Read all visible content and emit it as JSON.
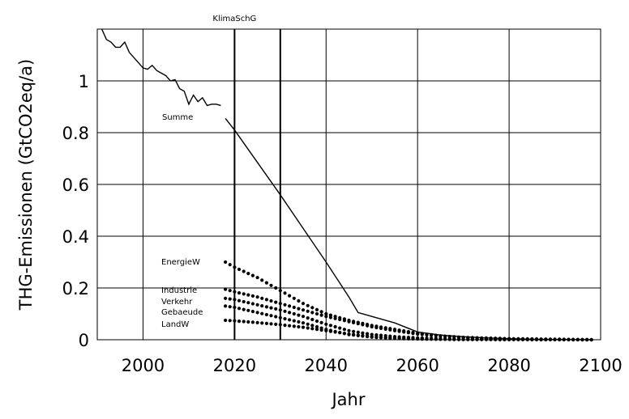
{
  "chart_data": {
    "type": "line",
    "title": "",
    "xlabel": "Jahr",
    "ylabel": "THG-Emissionen (GtCO2eq/a)",
    "xlim": [
      1990,
      2100
    ],
    "ylim": [
      0,
      1.2
    ],
    "x_ticks": [
      "2000",
      "2020",
      "2040",
      "2060",
      "2080",
      "2100"
    ],
    "y_ticks": [
      "0",
      "0.2",
      "0.4",
      "0.6",
      "0.8",
      "1"
    ],
    "grid": true,
    "vertical_markers": [
      {
        "x": 2020,
        "label": "KlimaSchG"
      },
      {
        "x": 2030,
        "label": ""
      }
    ],
    "series": [
      {
        "name": "Summe",
        "style": "line",
        "x": [
          1991,
          1992,
          1993,
          1994,
          1995,
          1996,
          1997,
          1998,
          1999,
          2000,
          2001,
          2002,
          2003,
          2004,
          2005,
          2006,
          2007,
          2008,
          2009,
          2010,
          2011,
          2012,
          2013,
          2014,
          2015,
          2016,
          2017
        ],
        "y": [
          1.2,
          1.16,
          1.15,
          1.13,
          1.13,
          1.15,
          1.11,
          1.09,
          1.07,
          1.05,
          1.045,
          1.06,
          1.04,
          1.03,
          1.02,
          1.0,
          1.005,
          0.97,
          0.96,
          0.91,
          0.945,
          0.92,
          0.935,
          0.905,
          0.91,
          0.91,
          0.905
        ]
      },
      {
        "name": "",
        "style": "line",
        "x": [
          2018,
          2020,
          2025,
          2030,
          2035,
          2040,
          2045,
          2047,
          2050,
          2055,
          2060,
          2065,
          2070,
          2075,
          2080,
          2085,
          2090,
          2095,
          2098
        ],
        "y": [
          0.855,
          0.81,
          0.685,
          0.56,
          0.43,
          0.3,
          0.165,
          0.105,
          0.09,
          0.065,
          0.03,
          0.018,
          0.012,
          0.007,
          0.004,
          0.002,
          0.001,
          0.0005,
          0
        ]
      },
      {
        "name": "EnergieW",
        "style": "dots",
        "x_start": 2018,
        "x_end": 2098,
        "x_step": 1,
        "y_points": [
          [
            2018,
            0.3
          ],
          [
            2020,
            0.28
          ],
          [
            2025,
            0.24
          ],
          [
            2030,
            0.19
          ],
          [
            2035,
            0.14
          ],
          [
            2040,
            0.1
          ],
          [
            2045,
            0.075
          ],
          [
            2050,
            0.055
          ],
          [
            2055,
            0.04
          ],
          [
            2060,
            0.025
          ],
          [
            2065,
            0.015
          ],
          [
            2070,
            0.009
          ],
          [
            2080,
            0.004
          ],
          [
            2090,
            0.002
          ],
          [
            2098,
            0
          ]
        ]
      },
      {
        "name": "Industrie",
        "style": "dots",
        "x_start": 2018,
        "x_end": 2098,
        "x_step": 1,
        "y_points": [
          [
            2018,
            0.195
          ],
          [
            2020,
            0.185
          ],
          [
            2025,
            0.165
          ],
          [
            2030,
            0.14
          ],
          [
            2035,
            0.115
          ],
          [
            2040,
            0.09
          ],
          [
            2045,
            0.07
          ],
          [
            2050,
            0.05
          ],
          [
            2055,
            0.035
          ],
          [
            2060,
            0.022
          ],
          [
            2065,
            0.014
          ],
          [
            2070,
            0.008
          ],
          [
            2080,
            0.003
          ],
          [
            2090,
            0.001
          ],
          [
            2098,
            0
          ]
        ]
      },
      {
        "name": "Verkehr",
        "style": "dots",
        "x_start": 2018,
        "x_end": 2098,
        "x_step": 1,
        "y_points": [
          [
            2018,
            0.16
          ],
          [
            2020,
            0.155
          ],
          [
            2025,
            0.135
          ],
          [
            2030,
            0.115
          ],
          [
            2035,
            0.09
          ],
          [
            2040,
            0.06
          ],
          [
            2045,
            0.035
          ],
          [
            2050,
            0.02
          ],
          [
            2055,
            0.012
          ],
          [
            2060,
            0.007
          ],
          [
            2070,
            0.003
          ],
          [
            2080,
            0.001
          ],
          [
            2098,
            0
          ]
        ]
      },
      {
        "name": "Gebaeude",
        "style": "dots",
        "x_start": 2018,
        "x_end": 2098,
        "x_step": 1,
        "y_points": [
          [
            2018,
            0.13
          ],
          [
            2020,
            0.125
          ],
          [
            2025,
            0.105
          ],
          [
            2030,
            0.085
          ],
          [
            2035,
            0.065
          ],
          [
            2040,
            0.04
          ],
          [
            2045,
            0.02
          ],
          [
            2050,
            0.01
          ],
          [
            2055,
            0.005
          ],
          [
            2060,
            0.003
          ],
          [
            2070,
            0.001
          ],
          [
            2098,
            0
          ]
        ]
      },
      {
        "name": "LandW",
        "style": "dots",
        "x_start": 2018,
        "x_end": 2098,
        "x_step": 1,
        "y_points": [
          [
            2018,
            0.075
          ],
          [
            2020,
            0.073
          ],
          [
            2025,
            0.066
          ],
          [
            2030,
            0.058
          ],
          [
            2035,
            0.048
          ],
          [
            2040,
            0.035
          ],
          [
            2045,
            0.022
          ],
          [
            2050,
            0.012
          ],
          [
            2055,
            0.006
          ],
          [
            2060,
            0.003
          ],
          [
            2070,
            0.001
          ],
          [
            2098,
            0
          ]
        ]
      }
    ]
  }
}
